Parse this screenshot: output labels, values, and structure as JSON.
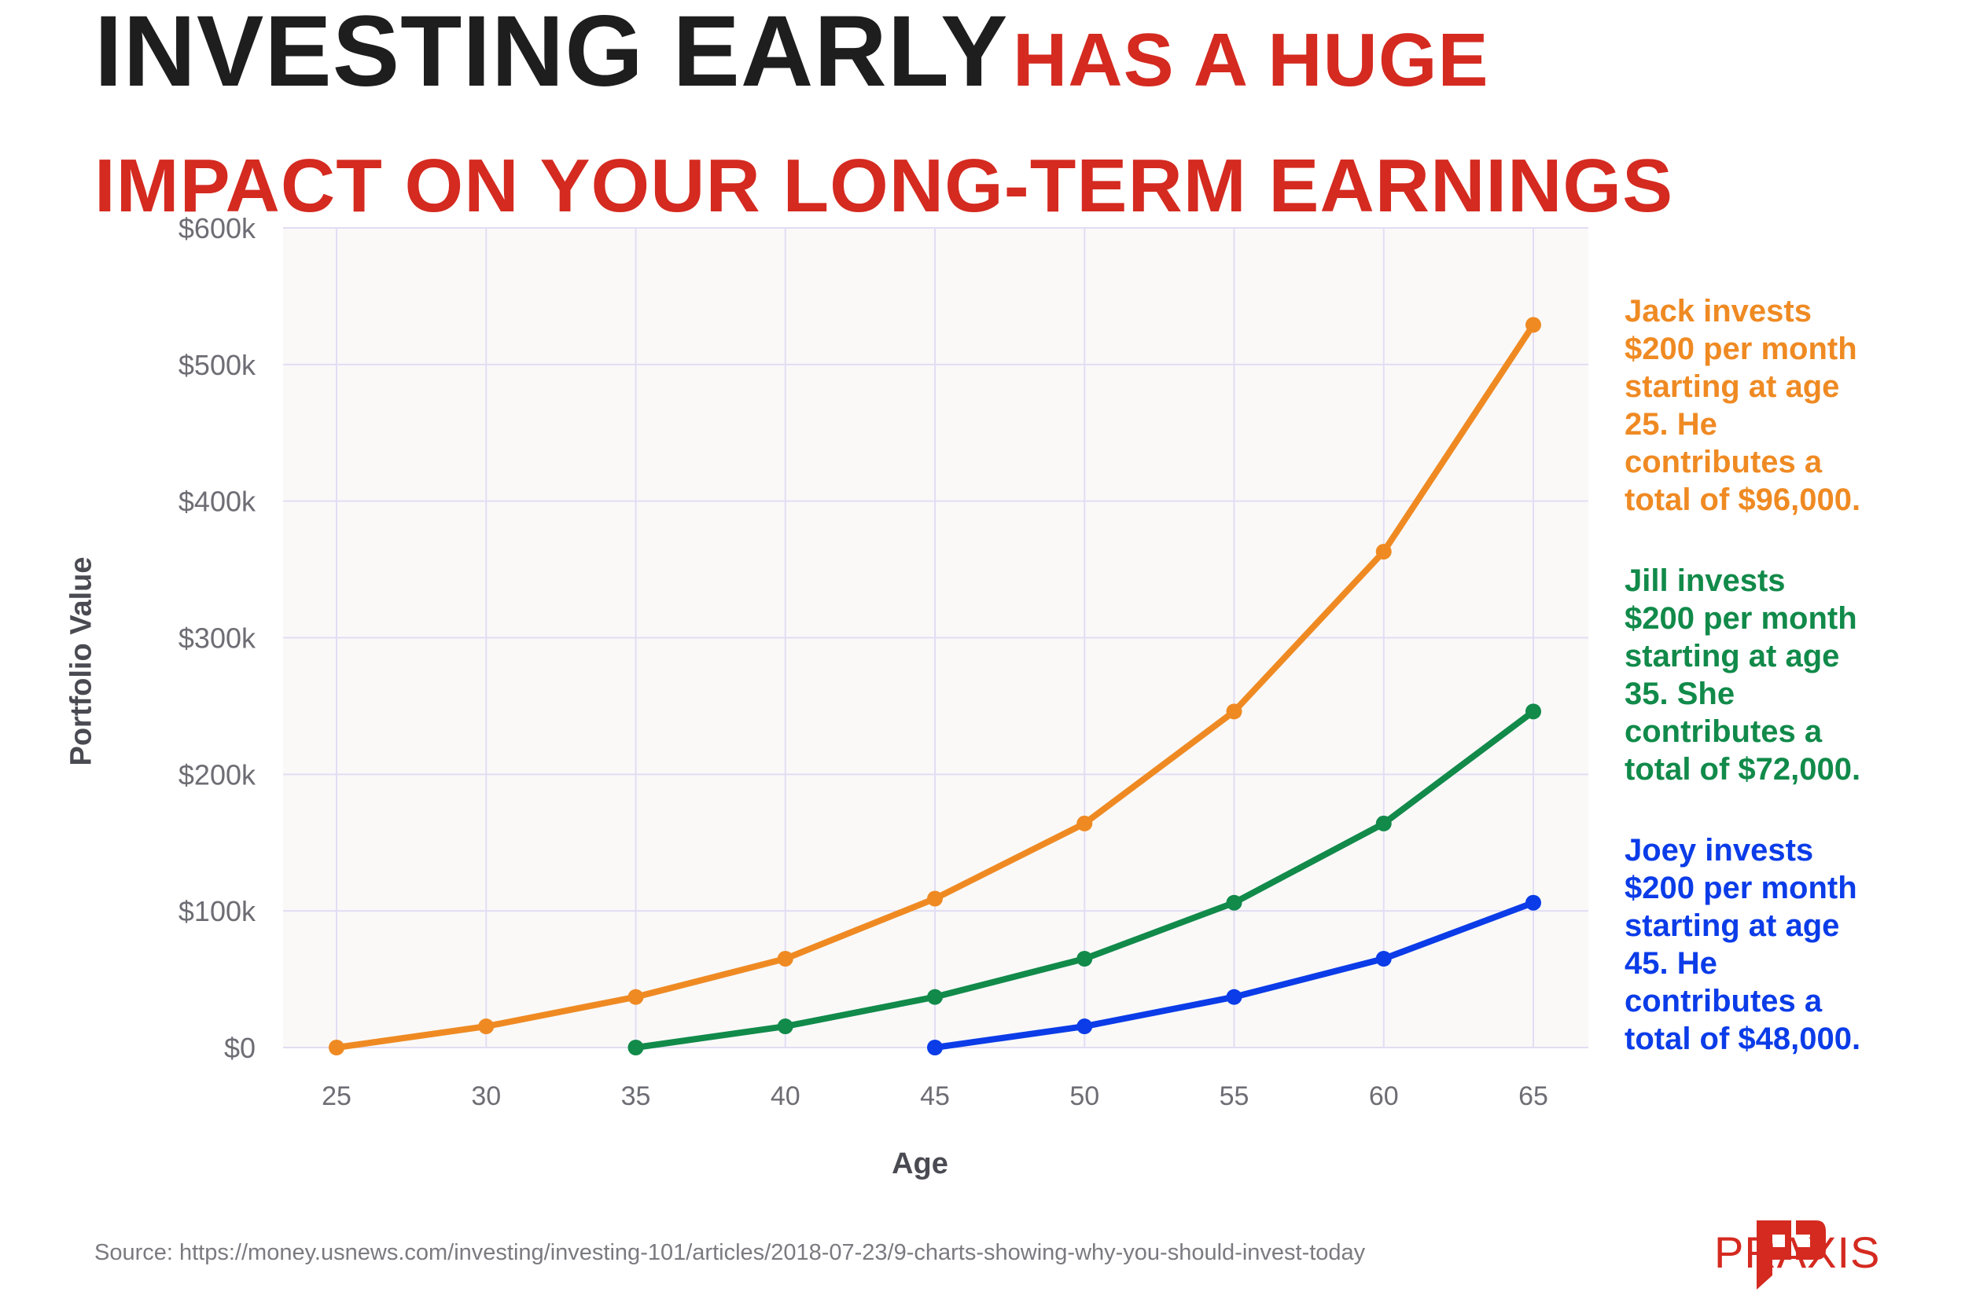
{
  "header": {
    "title_part1": "Investing early",
    "title_part2": "has a huge",
    "title_part3": "impact on your long-term earnings"
  },
  "colors": {
    "jack": "#ef8a23",
    "jill": "#118a4a",
    "joey": "#0b3ce8",
    "accent": "#d42a20",
    "plot_bg": "#faf9f8",
    "grid": "#e2ddf3"
  },
  "chart_data": {
    "type": "line",
    "xlabel": "Age",
    "ylabel": "Portfolio Value",
    "x_ticks": [
      25,
      30,
      35,
      40,
      45,
      50,
      55,
      60,
      65
    ],
    "y_ticks": [
      0,
      100000,
      200000,
      300000,
      400000,
      500000,
      600000
    ],
    "y_tick_labels": [
      "$0",
      "$100k",
      "$200k",
      "$300k",
      "$400k",
      "$500k",
      "$600k"
    ],
    "xlim": [
      25,
      65
    ],
    "ylim": [
      0,
      600000
    ],
    "grid": true,
    "series": [
      {
        "key": "jack",
        "x": [
          25,
          30,
          35,
          40,
          45,
          50,
          55,
          60,
          65
        ],
        "values": [
          0,
          15500,
          37000,
          65000,
          109000,
          164000,
          246000,
          363000,
          529000
        ]
      },
      {
        "key": "jill",
        "x": [
          35,
          40,
          45,
          50,
          55,
          60,
          65
        ],
        "values": [
          0,
          15500,
          37000,
          65000,
          106000,
          164000,
          246000
        ]
      },
      {
        "key": "joey",
        "x": [
          45,
          50,
          55,
          60,
          65
        ],
        "values": [
          0,
          15500,
          37000,
          65000,
          106000
        ]
      }
    ]
  },
  "annotations": {
    "jack": [
      "Jack invests",
      "$200 per month",
      "starting at age",
      "25. He",
      "contributes a",
      "total of $96,000."
    ],
    "jill": [
      "Jill invests",
      "$200 per month",
      "starting at age",
      "35. She",
      "contributes a",
      "total of $72,000."
    ],
    "joey": [
      "Joey invests",
      "$200 per month",
      "starting at age",
      "45. He",
      "contributes a",
      "total of $48,000."
    ]
  },
  "footer": {
    "source": "Source: https://money.usnews.com/investing/investing-101/articles/2018-07-23/9-charts-showing-why-you-should-invest-today",
    "brand": "PRAXIS"
  }
}
